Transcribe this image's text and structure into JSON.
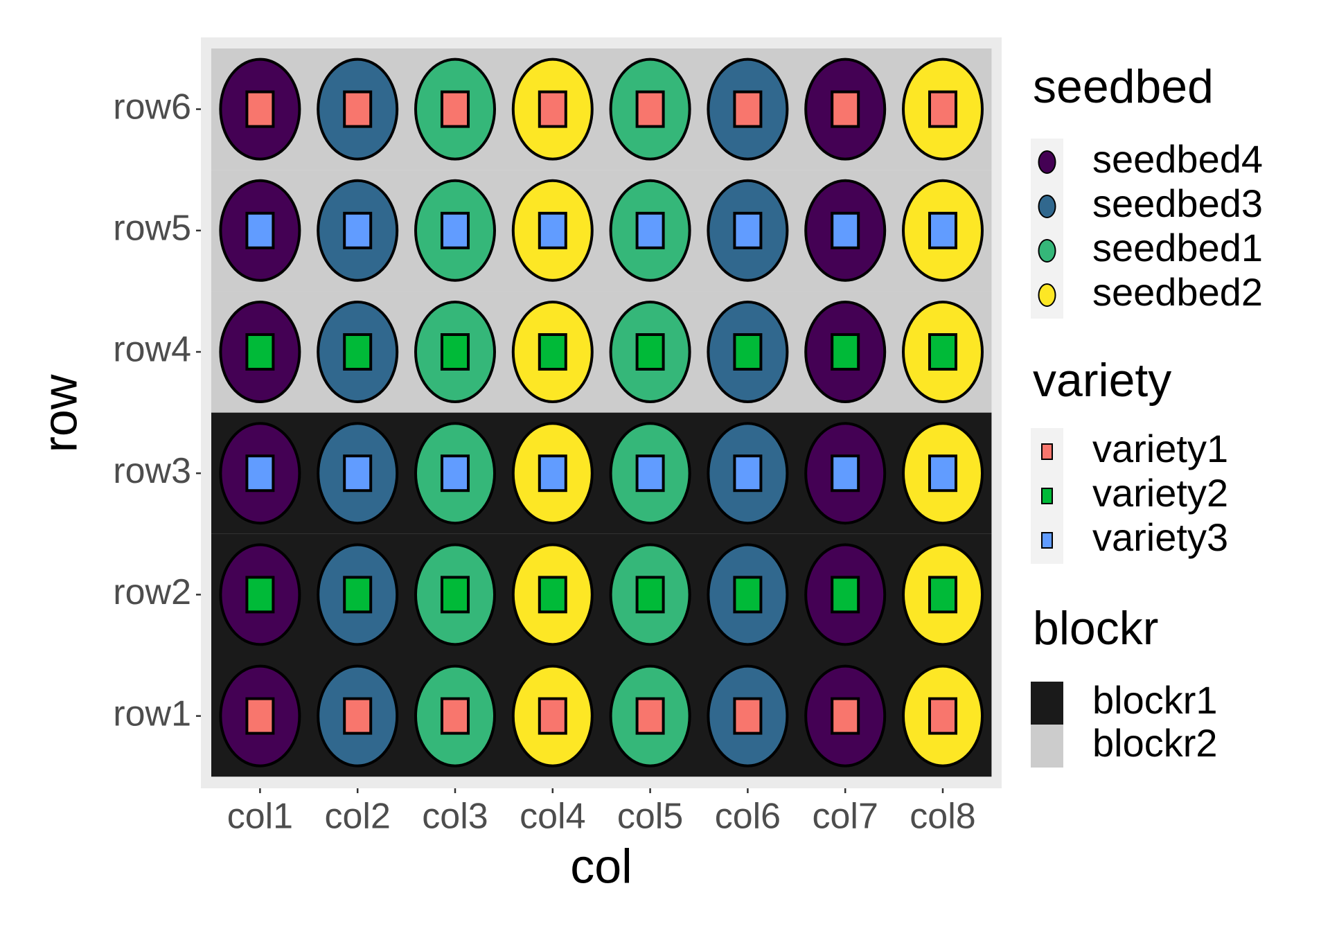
{
  "chart_data": {
    "type": "tile",
    "x_label": "col",
    "y_label": "row",
    "x_categories": [
      "col1",
      "col2",
      "col3",
      "col4",
      "col5",
      "col6",
      "col7",
      "col8"
    ],
    "y_categories": [
      "row1",
      "row2",
      "row3",
      "row4",
      "row5",
      "row6"
    ],
    "legends": {
      "seedbed": {
        "title": "seedbed",
        "levels": [
          {
            "name": "seedbed4",
            "color": "#440154"
          },
          {
            "name": "seedbed3",
            "color": "#31688e"
          },
          {
            "name": "seedbed1",
            "color": "#35b779"
          },
          {
            "name": "seedbed2",
            "color": "#fde725"
          }
        ]
      },
      "variety": {
        "title": "variety",
        "levels": [
          {
            "name": "variety1",
            "color": "#f8766d"
          },
          {
            "name": "variety2",
            "color": "#00ba38"
          },
          {
            "name": "variety3",
            "color": "#619cff"
          }
        ]
      },
      "blockr": {
        "title": "blockr",
        "levels": [
          {
            "name": "blockr1",
            "color": "#1a1a1a"
          },
          {
            "name": "blockr2",
            "color": "#cccccc"
          }
        ]
      }
    },
    "seedbed_by_col": [
      "seedbed4",
      "seedbed3",
      "seedbed1",
      "seedbed2",
      "seedbed1",
      "seedbed3",
      "seedbed4",
      "seedbed2"
    ],
    "variety_by_row": [
      "variety1",
      "variety2",
      "variety3",
      "variety2",
      "variety3",
      "variety1"
    ],
    "blockr_by_row": [
      "blockr1",
      "blockr1",
      "blockr1",
      "blockr2",
      "blockr2",
      "blockr2"
    ]
  }
}
